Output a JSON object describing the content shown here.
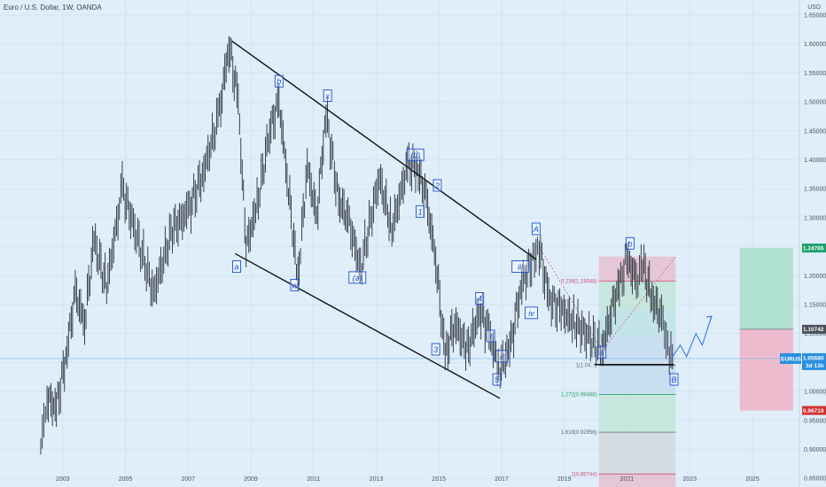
{
  "title": "Euro / U.S. Dollar, 1W, OANDA",
  "price_axis_unit": "USD",
  "colors": {
    "background": "#dfeef9",
    "grid": "#cfe0ee",
    "candle": "#262d38",
    "channel": "#111111",
    "wave_label": "#1b4fd1",
    "fib_pink": "#e7b9c8",
    "fib_green": "#bfe3d3",
    "fib_teal": "#b9e0e6",
    "fib_blue": "#c3d8ef",
    "fib_gray": "#d2d5da",
    "box_green": "#a8ddc8",
    "box_red": "#efb3c7",
    "tag_green": "#1e9e6a",
    "tag_gray": "#4a4f57",
    "tag_blue": "#2a8fe0",
    "tag_red": "#d32f2f",
    "projection": "#2a6fe0"
  },
  "chart_data": {
    "type": "line",
    "symbol": "EURUSD",
    "timeframe": "1W",
    "xlim": [
      2001.0,
      2026.5
    ],
    "ylim": [
      0.835,
      1.676
    ],
    "x_ticks": [
      "2003",
      "2005",
      "2007",
      "2009",
      "2011",
      "2013",
      "2015",
      "2017",
      "2019",
      "2021",
      "2023",
      "2025"
    ],
    "y_ticks": [
      "1.65000",
      "1.60000",
      "1.55000",
      "1.50000",
      "1.45000",
      "1.40000",
      "1.35000",
      "1.30000",
      "1.25000",
      "1.20000",
      "1.15000",
      "1.10000",
      "1.05000",
      "1.00000",
      "0.95000",
      "0.90000",
      "0.85000"
    ],
    "grid": true,
    "price_series": [
      [
        2002.3,
        0.905
      ],
      [
        2002.5,
        0.99
      ],
      [
        2002.8,
        0.97
      ],
      [
        2003.1,
        1.06
      ],
      [
        2003.4,
        1.17
      ],
      [
        2003.7,
        1.12
      ],
      [
        2004.0,
        1.26
      ],
      [
        2004.4,
        1.18
      ],
      [
        2004.9,
        1.35
      ],
      [
        2005.3,
        1.28
      ],
      [
        2005.9,
        1.17
      ],
      [
        2006.5,
        1.28
      ],
      [
        2007.0,
        1.31
      ],
      [
        2007.5,
        1.38
      ],
      [
        2008.0,
        1.48
      ],
      [
        2008.3,
        1.6
      ],
      [
        2008.6,
        1.5
      ],
      [
        2008.85,
        1.25
      ],
      [
        2009.2,
        1.32
      ],
      [
        2009.6,
        1.45
      ],
      [
        2009.9,
        1.5
      ],
      [
        2010.2,
        1.35
      ],
      [
        2010.5,
        1.19
      ],
      [
        2010.8,
        1.39
      ],
      [
        2011.1,
        1.3
      ],
      [
        2011.4,
        1.48
      ],
      [
        2011.8,
        1.33
      ],
      [
        2012.1,
        1.3
      ],
      [
        2012.5,
        1.21
      ],
      [
        2013.1,
        1.37
      ],
      [
        2013.5,
        1.28
      ],
      [
        2014.0,
        1.39
      ],
      [
        2014.3,
        1.39
      ],
      [
        2014.6,
        1.33
      ],
      [
        2014.9,
        1.23
      ],
      [
        2015.2,
        1.06
      ],
      [
        2015.5,
        1.12
      ],
      [
        2015.9,
        1.07
      ],
      [
        2016.3,
        1.14
      ],
      [
        2016.6,
        1.1
      ],
      [
        2016.95,
        1.04
      ],
      [
        2017.3,
        1.08
      ],
      [
        2017.6,
        1.18
      ],
      [
        2018.0,
        1.23
      ],
      [
        2018.2,
        1.25
      ],
      [
        2018.5,
        1.16
      ],
      [
        2018.9,
        1.14
      ],
      [
        2019.3,
        1.12
      ],
      [
        2019.7,
        1.1
      ],
      [
        2020.2,
        1.07
      ],
      [
        2020.5,
        1.14
      ],
      [
        2020.8,
        1.19
      ],
      [
        2021.0,
        1.23
      ],
      [
        2021.3,
        1.19
      ],
      [
        2021.5,
        1.22
      ],
      [
        2021.8,
        1.16
      ],
      [
        2022.1,
        1.13
      ],
      [
        2022.3,
        1.08
      ],
      [
        2022.45,
        1.06
      ]
    ],
    "channel_lines": [
      {
        "from": [
          2008.4,
          1.605
        ],
        "to": [
          2018.1,
          1.228
        ]
      },
      {
        "from": [
          2008.5,
          1.238
        ],
        "to": [
          2016.95,
          0.988
        ]
      }
    ],
    "wave_labels": [
      {
        "text": "a",
        "x": 2008.55,
        "y": 1.215
      },
      {
        "text": "b",
        "x": 2009.9,
        "y": 1.535
      },
      {
        "text": "w",
        "x": 2010.4,
        "y": 1.183
      },
      {
        "text": "x",
        "x": 2011.45,
        "y": 1.51
      },
      {
        "text": "(a)",
        "x": 2012.4,
        "y": 1.196
      },
      {
        "text": "(b)",
        "x": 2014.25,
        "y": 1.408
      },
      {
        "text": "2",
        "x": 2014.95,
        "y": 1.355
      },
      {
        "text": "1",
        "x": 2014.4,
        "y": 1.31
      },
      {
        "text": "3",
        "x": 2014.9,
        "y": 1.072
      },
      {
        "text": "4",
        "x": 2016.3,
        "y": 1.16
      },
      {
        "text": "5",
        "x": 2016.85,
        "y": 1.02
      },
      {
        "text": "i",
        "x": 2016.65,
        "y": 1.095
      },
      {
        "text": "ii",
        "x": 2017.0,
        "y": 1.06
      },
      {
        "text": "iii",
        "x": 2017.6,
        "y": 1.215
      },
      {
        "text": "iv",
        "x": 2017.95,
        "y": 1.135
      },
      {
        "text": "A",
        "x": 2018.1,
        "y": 1.28
      },
      {
        "text": "a",
        "x": 2020.2,
        "y": 1.067
      },
      {
        "text": "b",
        "x": 2021.1,
        "y": 1.255
      },
      {
        "text": "B",
        "x": 2022.5,
        "y": 1.02
      }
    ],
    "fib_levels": [
      {
        "label": "0.236(1.19048)",
        "value": 1.19048,
        "color": "#d04f78"
      },
      {
        "label": "1(1.04...)",
        "value": 1.045,
        "color": "#5f6a78"
      },
      {
        "label": "1.272(0.99488)",
        "value": 0.99488,
        "color": "#2ba36f"
      },
      {
        "label": "1.618(0.92956)",
        "value": 0.92956,
        "color": "#5f6a78"
      },
      {
        "label": "2(0.85744)",
        "value": 0.85744,
        "color": "#d04f78"
      }
    ],
    "fib_x_range": [
      2020.1,
      2022.55
    ],
    "fib_top": 1.233,
    "support_line": {
      "from": [
        2019.95,
        1.0465
      ],
      "to": [
        2022.5,
        1.0465
      ]
    },
    "projection": [
      [
        2022.45,
        1.06
      ],
      [
        2022.7,
        1.08
      ],
      [
        2022.9,
        1.06
      ],
      [
        2023.2,
        1.1
      ],
      [
        2023.4,
        1.08
      ],
      [
        2023.7,
        1.13
      ]
    ],
    "position_box": {
      "x_range": [
        2024.6,
        2026.3
      ],
      "entry": 1.10742,
      "target": 1.24765,
      "stop": 0.96719
    },
    "price_tags": [
      {
        "text": "1.24765",
        "value": 1.24765,
        "kind": "green"
      },
      {
        "text": "1.10742",
        "value": 1.10742,
        "kind": "gray"
      },
      {
        "text": "EURUSD",
        "value": 1.0568,
        "kind": "blue"
      },
      {
        "text": "1.05680",
        "value": 1.0568,
        "kind": "blue"
      },
      {
        "text": "3d 13h",
        "value": 1.0568,
        "kind": "blue"
      },
      {
        "text": "0.96719",
        "value": 0.96719,
        "kind": "red"
      }
    ]
  }
}
